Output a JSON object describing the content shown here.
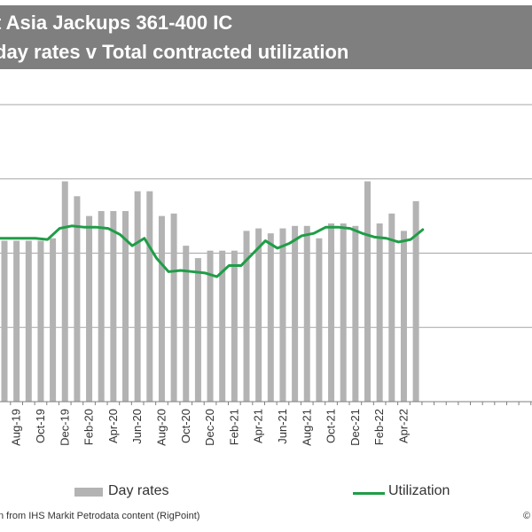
{
  "title": {
    "line1": "t Asia Jackups 361-400 IC",
    "line2": "day rates v  Total contracted utilization"
  },
  "legend": {
    "day_rates": "Day rates",
    "utilization": "Utilization"
  },
  "source": "n  from IHS Markit Petrodata content (RigPoint)",
  "copyright": "©",
  "colors": {
    "title_bg": "#7f7f7f",
    "bars": "#b3b3b3",
    "line": "#1f9d47",
    "grid": "#a6a6a6"
  },
  "chart_data": {
    "type": "bar",
    "x_tick_labels": [
      "Aug-19",
      "Oct-19",
      "Dec-19",
      "Feb-20",
      "Apr-20",
      "Jun-20",
      "Aug-20",
      "Oct-20",
      "Dec-20",
      "Feb-21",
      "Apr-21",
      "Jun-21",
      "Aug-21",
      "Oct-21",
      "Dec-21",
      "Feb-22",
      "Apr-22"
    ],
    "grid": true,
    "series": [
      {
        "name": "Day rates",
        "kind": "bar",
        "values": [
          65,
          65,
          65,
          65,
          66,
          89,
          83,
          75,
          77,
          77,
          77,
          85,
          85,
          75,
          76,
          63,
          58,
          61,
          61,
          61,
          69,
          70,
          68,
          70,
          71,
          71,
          66,
          72,
          72,
          71,
          89,
          72,
          76,
          69,
          81
        ]
      },
      {
        "name": "Utilization",
        "kind": "line",
        "values": [
          66,
          66,
          66,
          66,
          65.5,
          70,
          71,
          70.5,
          70.5,
          70,
          67.5,
          63,
          66,
          58,
          52.5,
          53,
          52.5,
          52,
          50.5,
          55,
          55,
          60,
          65,
          62,
          64,
          67,
          68,
          70.5,
          70.5,
          70,
          68,
          66.5,
          66,
          64.5,
          65.5,
          69.5
        ]
      }
    ],
    "ylim": [
      0,
      120
    ]
  }
}
